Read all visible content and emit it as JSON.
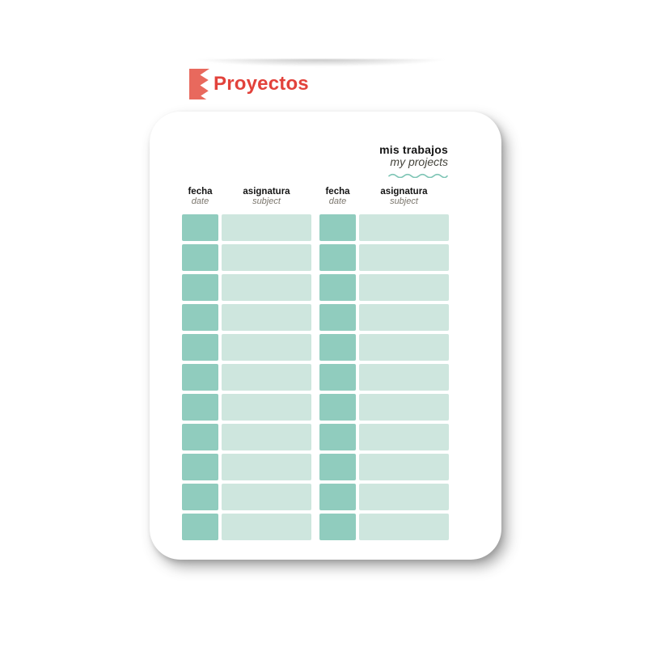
{
  "header": {
    "title": "Proyectos",
    "title_color": "#e2423b",
    "flag_icon_color": "#e8695d"
  },
  "card": {
    "title_main": "mis trabajos",
    "title_sub": "my projects",
    "wave_color": "#7ec5b5",
    "groups": [
      {
        "columns": [
          {
            "label": "fecha",
            "sublabel": "date"
          },
          {
            "label": "asignatura",
            "sublabel": "subject"
          }
        ]
      },
      {
        "columns": [
          {
            "label": "fecha",
            "sublabel": "date"
          },
          {
            "label": "asignatura",
            "sublabel": "subject"
          }
        ]
      }
    ],
    "table": {
      "rows": 11,
      "date_cell_color": "#90ccbe",
      "subject_cell_color": "#cee6de"
    }
  }
}
